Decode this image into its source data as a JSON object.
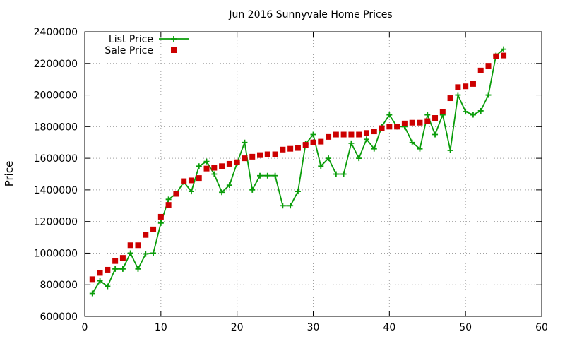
{
  "chart_data": {
    "type": "line",
    "title": "Jun 2016 Sunnyvale Home Prices",
    "xlabel": "",
    "ylabel": "Price",
    "xlim": [
      0,
      60
    ],
    "ylim": [
      600000,
      2400000
    ],
    "x_ticks": [
      "0",
      "10",
      "20",
      "30",
      "40",
      "50",
      "60"
    ],
    "y_ticks": [
      "600000",
      "800000",
      "1000000",
      "1200000",
      "1400000",
      "1600000",
      "1800000",
      "2000000",
      "2200000",
      "2400000"
    ],
    "grid": true,
    "legend_position": "top-left",
    "series": [
      {
        "name": "List Price",
        "style": "line-with-plus-markers",
        "color": "#0a9d0a",
        "x": [
          1,
          2,
          3,
          4,
          5,
          6,
          7,
          8,
          9,
          10,
          11,
          12,
          13,
          14,
          15,
          16,
          17,
          18,
          19,
          20,
          21,
          22,
          23,
          24,
          25,
          26,
          27,
          28,
          29,
          30,
          31,
          32,
          33,
          34,
          35,
          36,
          37,
          38,
          39,
          40,
          41,
          42,
          43,
          44,
          45,
          46,
          47,
          48,
          49,
          50,
          51,
          52,
          53,
          54,
          55
        ],
        "values": [
          745000,
          825000,
          790000,
          900000,
          900000,
          1000000,
          900000,
          995000,
          1000000,
          1190000,
          1340000,
          1375000,
          1450000,
          1390000,
          1550000,
          1580000,
          1500000,
          1385000,
          1430000,
          1570000,
          1700000,
          1400000,
          1490000,
          1490000,
          1490000,
          1300000,
          1300000,
          1390000,
          1690000,
          1750000,
          1550000,
          1600000,
          1500000,
          1500000,
          1695000,
          1600000,
          1720000,
          1660000,
          1800000,
          1875000,
          1800000,
          1800000,
          1700000,
          1660000,
          1875000,
          1750000,
          1875000,
          1650000,
          2000000,
          1895000,
          1875000,
          1900000,
          2000000,
          2250000,
          2290000
        ]
      },
      {
        "name": "Sale Price",
        "style": "square-markers",
        "color": "#cc0000",
        "x": [
          1,
          2,
          3,
          4,
          5,
          6,
          7,
          8,
          9,
          10,
          11,
          12,
          13,
          14,
          15,
          16,
          17,
          18,
          19,
          20,
          21,
          22,
          23,
          24,
          25,
          26,
          27,
          28,
          29,
          30,
          31,
          32,
          33,
          34,
          35,
          36,
          37,
          38,
          39,
          40,
          41,
          42,
          43,
          44,
          45,
          46,
          47,
          48,
          49,
          50,
          51,
          52,
          53,
          54,
          55
        ],
        "values": [
          835000,
          875000,
          895000,
          950000,
          970000,
          1050000,
          1050000,
          1115000,
          1150000,
          1230000,
          1305000,
          1375000,
          1455000,
          1460000,
          1475000,
          1535000,
          1540000,
          1550000,
          1565000,
          1575000,
          1600000,
          1610000,
          1620000,
          1625000,
          1625000,
          1655000,
          1660000,
          1665000,
          1685000,
          1700000,
          1705000,
          1735000,
          1750000,
          1750000,
          1750000,
          1750000,
          1760000,
          1770000,
          1790000,
          1800000,
          1800000,
          1820000,
          1825000,
          1825000,
          1835000,
          1855000,
          1895000,
          1980000,
          2050000,
          2055000,
          2070000,
          2155000,
          2185000,
          2245000,
          2250000
        ]
      }
    ]
  }
}
